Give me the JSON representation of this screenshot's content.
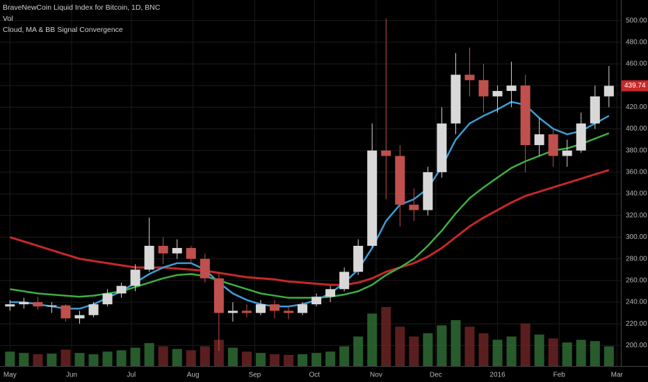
{
  "chart_data": {
    "type": "candlestick",
    "title": "BraveNewCoin Liquid Index for Bitcoin, 1D, BNC",
    "indicators": [
      "Vol",
      "Cloud, MA & BB Signal Convergence"
    ],
    "x": [
      0,
      7,
      14,
      21,
      28,
      35,
      42,
      49,
      56,
      63,
      70,
      77,
      84,
      91,
      98,
      105,
      112,
      119,
      126,
      133,
      140,
      147,
      154,
      161,
      168,
      175,
      182,
      189,
      196,
      203,
      210,
      217,
      224,
      231,
      238,
      245,
      252,
      259,
      266,
      273,
      280,
      287,
      294,
      301
    ],
    "open": [
      236,
      238,
      240,
      236,
      237,
      225,
      228,
      238,
      248,
      255,
      270,
      292,
      285,
      290,
      280,
      262,
      230,
      232,
      230,
      238,
      232,
      230,
      238,
      245,
      252,
      268,
      292,
      380,
      375,
      330,
      325,
      360,
      405,
      450,
      445,
      430,
      435,
      440,
      385,
      395,
      375,
      380,
      405,
      430
    ],
    "high": [
      242,
      244,
      245,
      240,
      238,
      232,
      240,
      252,
      258,
      275,
      318,
      300,
      298,
      292,
      285,
      268,
      240,
      238,
      242,
      242,
      236,
      240,
      248,
      255,
      272,
      298,
      405,
      502,
      385,
      345,
      365,
      420,
      470,
      475,
      460,
      440,
      462,
      450,
      410,
      400,
      390,
      415,
      440,
      458
    ],
    "low": [
      232,
      234,
      233,
      230,
      222,
      220,
      226,
      236,
      244,
      250,
      268,
      275,
      280,
      275,
      258,
      195,
      222,
      226,
      228,
      225,
      224,
      228,
      236,
      240,
      250,
      265,
      290,
      335,
      310,
      315,
      320,
      355,
      395,
      430,
      415,
      415,
      420,
      360,
      375,
      365,
      365,
      378,
      400,
      420
    ],
    "close": [
      238,
      240,
      236,
      237,
      225,
      228,
      238,
      248,
      255,
      270,
      292,
      285,
      290,
      280,
      262,
      230,
      232,
      230,
      238,
      232,
      230,
      238,
      245,
      252,
      268,
      292,
      380,
      375,
      330,
      325,
      360,
      405,
      450,
      445,
      430,
      435,
      440,
      385,
      395,
      375,
      380,
      405,
      430,
      439.74
    ],
    "volume": [
      22,
      20,
      18,
      19,
      25,
      20,
      18,
      22,
      24,
      28,
      35,
      30,
      26,
      24,
      30,
      40,
      28,
      22,
      20,
      18,
      17,
      18,
      20,
      22,
      30,
      45,
      80,
      90,
      60,
      45,
      50,
      62,
      70,
      60,
      50,
      40,
      45,
      65,
      48,
      42,
      36,
      40,
      38,
      30
    ],
    "up_color": "#d8d8d8",
    "down_color": "#c0504d",
    "moving_averages": [
      {
        "color": "#c62828",
        "values": [
          300,
          296,
          292,
          288,
          284,
          280,
          278,
          276,
          274,
          272,
          272,
          272,
          271,
          270,
          269,
          267,
          265,
          263,
          262,
          261,
          259,
          258,
          257,
          256,
          256,
          258,
          262,
          268,
          272,
          276,
          282,
          290,
          300,
          310,
          318,
          325,
          332,
          338,
          342,
          346,
          350,
          354,
          358,
          362
        ]
      },
      {
        "color": "#3cb043",
        "values": [
          252,
          250,
          248,
          247,
          246,
          245,
          246,
          248,
          250,
          254,
          258,
          262,
          265,
          266,
          264,
          260,
          256,
          252,
          248,
          246,
          244,
          244,
          244,
          245,
          247,
          250,
          256,
          265,
          272,
          280,
          292,
          306,
          322,
          336,
          346,
          355,
          364,
          370,
          375,
          380,
          382,
          386,
          391,
          396
        ]
      },
      {
        "color": "#3d9dd6",
        "values": [
          240,
          240,
          238,
          236,
          234,
          234,
          238,
          244,
          250,
          258,
          266,
          272,
          276,
          276,
          270,
          258,
          248,
          242,
          238,
          236,
          236,
          238,
          242,
          248,
          258,
          270,
          290,
          315,
          330,
          335,
          345,
          365,
          390,
          405,
          412,
          418,
          425,
          422,
          410,
          400,
          395,
          398,
          405,
          412
        ]
      }
    ],
    "last_price": 439.74,
    "xlim": [
      -5,
      307
    ],
    "ylim": [
      181,
      519
    ],
    "xticks": [
      {
        "value": 0,
        "label": "May"
      },
      {
        "value": 31,
        "label": "Jun"
      },
      {
        "value": 61,
        "label": "Jul"
      },
      {
        "value": 92,
        "label": "Aug"
      },
      {
        "value": 123,
        "label": "Sep"
      },
      {
        "value": 153,
        "label": "Oct"
      },
      {
        "value": 184,
        "label": "Nov"
      },
      {
        "value": 214,
        "label": "Dec"
      },
      {
        "value": 245,
        "label": "2016"
      },
      {
        "value": 276,
        "label": "Feb"
      },
      {
        "value": 305,
        "label": "Mar"
      }
    ],
    "yticks": [
      {
        "value": 200,
        "label": "200.00"
      },
      {
        "value": 220,
        "label": "220.00"
      },
      {
        "value": 240,
        "label": "240.00"
      },
      {
        "value": 260,
        "label": "260.00"
      },
      {
        "value": 280,
        "label": "280.00"
      },
      {
        "value": 300,
        "label": "300.00"
      },
      {
        "value": 320,
        "label": "320.00"
      },
      {
        "value": 340,
        "label": "340.00"
      },
      {
        "value": 360,
        "label": "360.00"
      },
      {
        "value": 380,
        "label": "380.00"
      },
      {
        "value": 400,
        "label": "400.00"
      },
      {
        "value": 420,
        "label": "420.00"
      },
      {
        "value": 440,
        "label": "440.00"
      },
      {
        "value": 460,
        "label": "460.00"
      },
      {
        "value": 480,
        "label": "480.00"
      },
      {
        "value": 500,
        "label": "500.00"
      }
    ],
    "grid": true
  }
}
